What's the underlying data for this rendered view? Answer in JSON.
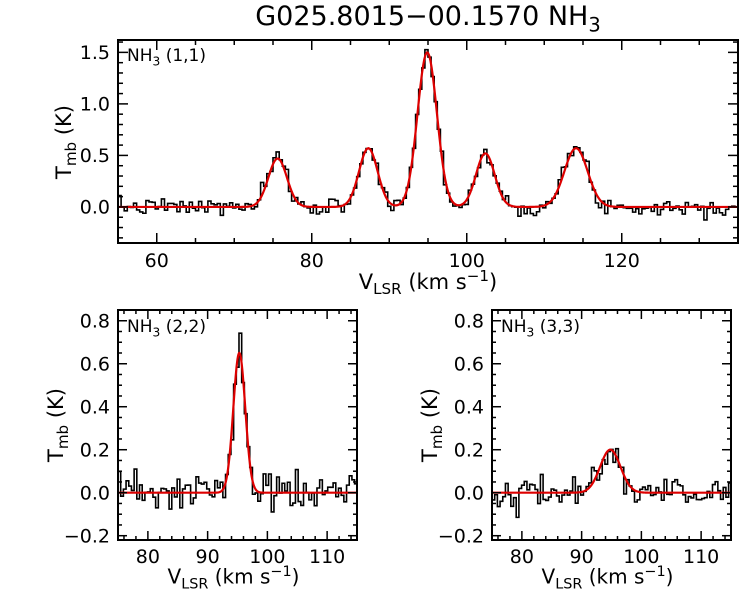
{
  "title": {
    "main": "G025.8015−00.1570 NH",
    "sub": "3"
  },
  "axis": {
    "xlabel": {
      "pre": "V",
      "sub": "LSR",
      "mid": " (km s",
      "sup": "−1",
      "post": ")"
    },
    "ylabel": {
      "pre": "T",
      "sub": "mb",
      "post": " (K)"
    }
  },
  "colors": {
    "background": "#ffffff",
    "data": "#000000",
    "fit": "#dd0000",
    "frame": "#000000"
  },
  "chart_data": [
    {
      "id": "nh3_11",
      "type": "line",
      "panel_label": {
        "pre": "NH",
        "sub": "3",
        "post": " (1,1)"
      },
      "series": [
        {
          "name": "observed spectrum",
          "style": "histogram",
          "color": "#000000"
        },
        {
          "name": "Gaussian fit",
          "style": "line",
          "color": "#dd0000"
        }
      ],
      "xlim": [
        55,
        135
      ],
      "ylim": [
        -0.35,
        1.62
      ],
      "xticks": [
        60,
        80,
        100,
        120
      ],
      "xtick_labels": [
        "60",
        "80",
        "100",
        "120"
      ],
      "yticks": [
        0.0,
        0.5,
        1.0,
        1.5
      ],
      "ytick_labels": [
        "0.0",
        "0.5",
        "1.0",
        "1.5"
      ],
      "x_minor": 5,
      "y_minor": 0.1,
      "channel_width": 0.4,
      "noise_sigma": 0.04,
      "seed": 7,
      "fit_components": [
        {
          "center": 75.6,
          "amplitude": 0.47,
          "sigma": 1.2
        },
        {
          "center": 87.3,
          "amplitude": 0.57,
          "sigma": 1.2
        },
        {
          "center": 94.9,
          "amplitude": 1.5,
          "sigma": 1.25
        },
        {
          "center": 102.4,
          "amplitude": 0.52,
          "sigma": 1.2
        },
        {
          "center": 114.1,
          "amplitude": 0.57,
          "sigma": 1.5
        }
      ]
    },
    {
      "id": "nh3_22",
      "type": "line",
      "panel_label": {
        "pre": "NH",
        "sub": "3",
        "post": " (2,2)"
      },
      "series": [
        {
          "name": "observed spectrum",
          "style": "histogram",
          "color": "#000000"
        },
        {
          "name": "Gaussian fit",
          "style": "line",
          "color": "#dd0000"
        }
      ],
      "xlim": [
        75,
        115
      ],
      "ylim": [
        -0.22,
        0.85
      ],
      "xticks": [
        80,
        90,
        100,
        110
      ],
      "xtick_labels": [
        "80",
        "90",
        "100",
        "110"
      ],
      "yticks": [
        -0.2,
        0.0,
        0.2,
        0.4,
        0.6,
        0.8
      ],
      "ytick_labels": [
        "−0.2",
        "0.0",
        "0.2",
        "0.4",
        "0.6",
        "0.8"
      ],
      "x_minor": 2,
      "y_minor": 0.05,
      "channel_width": 0.45,
      "noise_sigma": 0.05,
      "seed": 23,
      "fit_components": [
        {
          "center": 95.3,
          "amplitude": 0.65,
          "sigma": 1.0
        }
      ]
    },
    {
      "id": "nh3_33",
      "type": "line",
      "panel_label": {
        "pre": "NH",
        "sub": "3",
        "post": " (3,3)"
      },
      "series": [
        {
          "name": "observed spectrum",
          "style": "histogram",
          "color": "#000000"
        },
        {
          "name": "Gaussian fit",
          "style": "line",
          "color": "#dd0000"
        }
      ],
      "xlim": [
        75,
        115
      ],
      "ylim": [
        -0.22,
        0.85
      ],
      "xticks": [
        80,
        90,
        100,
        110
      ],
      "xtick_labels": [
        "80",
        "90",
        "100",
        "110"
      ],
      "yticks": [
        -0.2,
        0.0,
        0.2,
        0.4,
        0.6,
        0.8
      ],
      "ytick_labels": [
        "−0.2",
        "0.0",
        "0.2",
        "0.4",
        "0.6",
        "0.8"
      ],
      "x_minor": 2,
      "y_minor": 0.05,
      "channel_width": 0.45,
      "noise_sigma": 0.035,
      "seed": 42,
      "fit_components": [
        {
          "center": 94.8,
          "amplitude": 0.2,
          "sigma": 1.7
        }
      ]
    }
  ]
}
